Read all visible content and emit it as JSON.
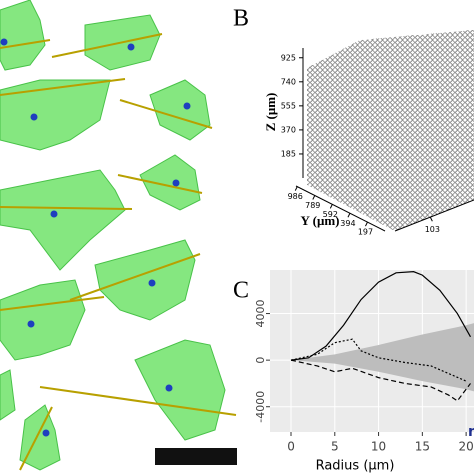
{
  "panel_labels": [
    "B",
    "C"
  ],
  "chart_data": [
    {
      "type": "scatter3d",
      "zlabel": "Z (μm)",
      "ylabel": "Y (μm)",
      "zlim": [
        0,
        1000
      ],
      "zticks": [
        185,
        370,
        555,
        740,
        925
      ],
      "ylim": [
        0,
        1000
      ],
      "yticks": [
        197,
        394,
        592,
        789,
        986
      ],
      "xlim": [
        0,
        300
      ],
      "xticks": [
        103
      ],
      "color": "#555555"
    },
    {
      "type": "line",
      "xlabel": "Radius (μm)",
      "annotation": "n",
      "xlim": [
        -2.4,
        20.9
      ],
      "xticks": [
        0,
        5,
        10,
        15,
        20
      ],
      "ylim": [
        -6170,
        7740
      ],
      "yticks": [
        -4000,
        0,
        4000
      ],
      "grid": true,
      "band": {
        "color": "#bdbdbd",
        "x": [
          0,
          5,
          10,
          15,
          20,
          21
        ],
        "upper": [
          0,
          500,
          1300,
          2200,
          3000,
          3200
        ],
        "lower": [
          0,
          -300,
          -1000,
          -1800,
          -2500,
          -2700
        ]
      },
      "series": [
        {
          "color": "#000000",
          "dash": "solid",
          "x": [
            0,
            2,
            4,
            6,
            8,
            10,
            12,
            14,
            15,
            17,
            19,
            20.5
          ],
          "values": [
            0,
            200,
            1200,
            3000,
            5200,
            6700,
            7500,
            7600,
            7300,
            6000,
            4000,
            2000
          ]
        },
        {
          "color": "#000000",
          "dash": "dashed",
          "x": [
            0,
            3,
            5,
            7,
            10,
            13,
            16,
            18,
            19,
            20.5
          ],
          "values": [
            0,
            -500,
            -1000,
            -700,
            -1500,
            -2000,
            -2300,
            -3000,
            -3500,
            -2000
          ]
        },
        {
          "color": "#000000",
          "dash": "dotted",
          "x": [
            0,
            3,
            5,
            7,
            8,
            10,
            13,
            16,
            20
          ],
          "values": [
            0,
            500,
            1500,
            1800,
            800,
            200,
            -200,
            -500,
            -1800
          ]
        }
      ]
    }
  ]
}
